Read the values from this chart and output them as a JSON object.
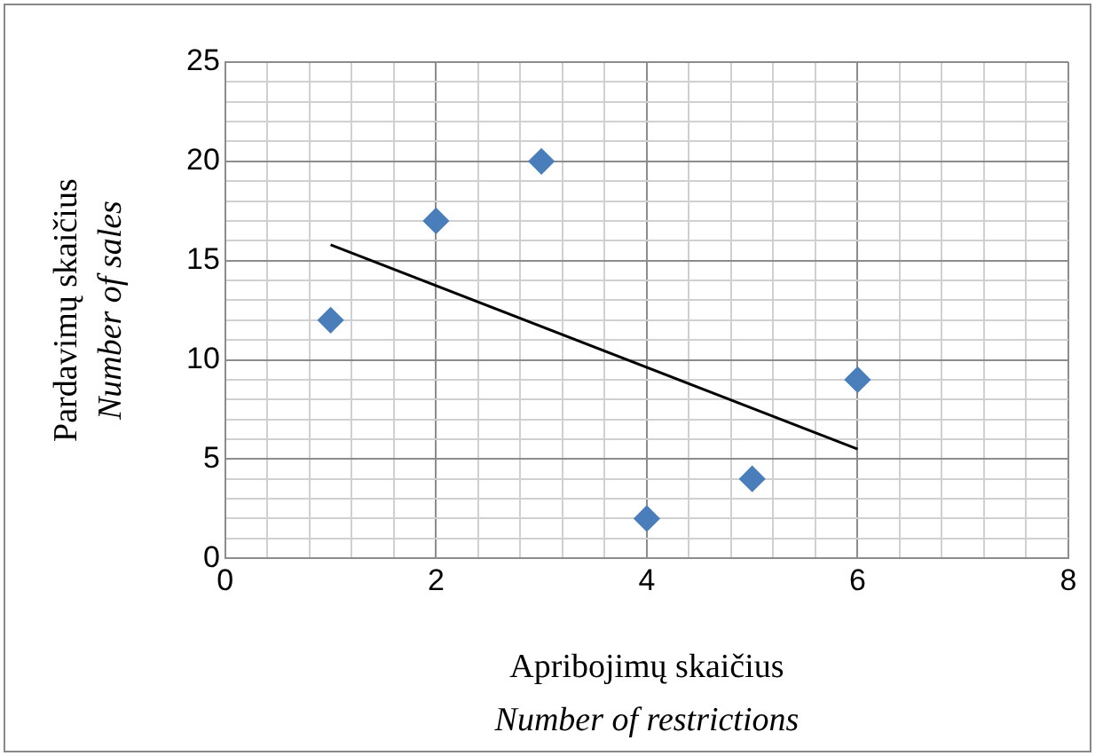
{
  "chart_data": {
    "type": "scatter",
    "xlabel": "Apribojimų skaičius\nNumber of restrictions",
    "ylabel": "Pardavimų skaičius\nNumber of sales",
    "series": [
      {
        "color": "#4a7ebb",
        "x": [
          1,
          2,
          3,
          4,
          5,
          6
        ],
        "values": [
          12,
          17,
          20,
          2,
          4,
          9
        ]
      },
      {
        "type": "line",
        "color": "#000000",
        "x": [
          1,
          6
        ],
        "values": [
          15.8,
          5.5
        ],
        "marker": "none"
      }
    ],
    "xlim": [
      0,
      8
    ],
    "ylim": [
      0,
      25
    ],
    "xticks": [
      0,
      {
        "value": 0.4,
        "label": null
      },
      {
        "value": 0.8,
        "label": null
      },
      {
        "value": 1.2,
        "label": null
      },
      {
        "value": 1.6,
        "label": null
      },
      2,
      {
        "value": 2.4,
        "label": null
      },
      {
        "value": 2.8,
        "label": null
      },
      {
        "value": 3.2,
        "label": null
      },
      {
        "value": 3.6,
        "label": null
      },
      4,
      {
        "value": 4.4,
        "label": null
      },
      {
        "value": 4.8,
        "label": null
      },
      {
        "value": 5.2,
        "label": null
      },
      {
        "value": 5.6,
        "label": null
      },
      6,
      {
        "value": 6.4,
        "label": null
      },
      {
        "value": 6.8,
        "label": null
      },
      {
        "value": 7.2,
        "label": null
      },
      {
        "value": 7.6,
        "label": null
      },
      8
    ],
    "yticks": [
      0,
      {
        "value": 1,
        "label": null
      },
      {
        "value": 2,
        "label": null
      },
      {
        "value": 3,
        "label": null
      },
      {
        "value": 4,
        "label": null
      },
      5,
      {
        "value": 6,
        "label": null
      },
      {
        "value": 7,
        "label": null
      },
      {
        "value": 8,
        "label": null
      },
      {
        "value": 9,
        "label": null
      },
      10,
      {
        "value": 11,
        "label": null
      },
      {
        "value": 12,
        "label": null
      },
      {
        "value": 13,
        "label": null
      },
      {
        "value": 14,
        "label": null
      },
      15,
      {
        "value": 16,
        "label": null
      },
      {
        "value": 17,
        "label": null
      },
      {
        "value": 18,
        "label": null
      },
      {
        "value": 19,
        "label": null
      },
      20,
      {
        "value": 21,
        "label": null
      },
      {
        "value": 22,
        "label": null
      },
      {
        "value": 23,
        "label": null
      },
      {
        "value": 24,
        "label": null
      },
      25
    ],
    "grid": true,
    "legend": false,
    "marker": "diamond"
  }
}
